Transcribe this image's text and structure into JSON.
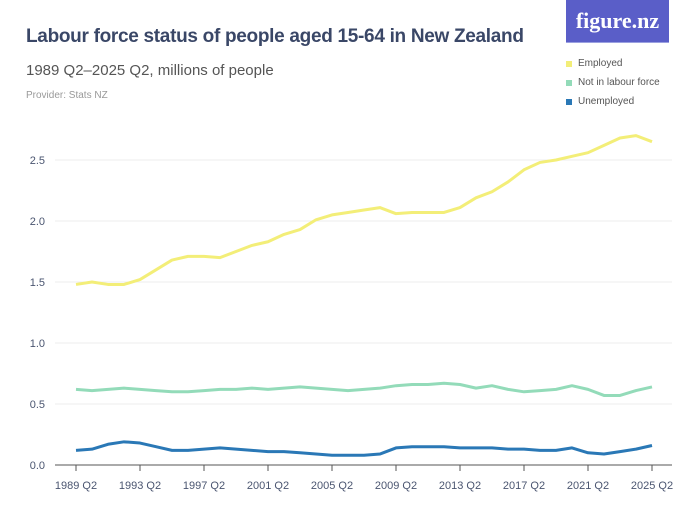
{
  "header": {
    "title": "Labour force status of people aged 15-64 in New Zealand",
    "subtitle": "1989 Q2–2025 Q2, millions of people",
    "provider": "Provider: Stats NZ",
    "logo": "figure.nz"
  },
  "chart_data": {
    "type": "line",
    "title": "Labour force status of people aged 15-64 in New Zealand",
    "subtitle": "1989 Q2–2025 Q2, millions of people",
    "x": [
      "1989 Q2",
      "1990 Q2",
      "1991 Q2",
      "1992 Q2",
      "1993 Q2",
      "1994 Q2",
      "1995 Q2",
      "1996 Q2",
      "1997 Q2",
      "1998 Q2",
      "1999 Q2",
      "2000 Q2",
      "2001 Q2",
      "2002 Q2",
      "2003 Q2",
      "2004 Q2",
      "2005 Q2",
      "2006 Q2",
      "2007 Q2",
      "2008 Q2",
      "2009 Q2",
      "2010 Q2",
      "2011 Q2",
      "2012 Q2",
      "2013 Q2",
      "2014 Q2",
      "2015 Q2",
      "2016 Q2",
      "2017 Q2",
      "2018 Q2",
      "2019 Q2",
      "2020 Q2",
      "2021 Q2",
      "2022 Q2",
      "2023 Q2",
      "2024 Q2",
      "2025 Q2"
    ],
    "xticks": [
      "1989 Q2",
      "1993 Q2",
      "1997 Q2",
      "2001 Q2",
      "2005 Q2",
      "2009 Q2",
      "2013 Q2",
      "2017 Q2",
      "2021 Q2",
      "2025 Q2"
    ],
    "yticks": [
      "0.0",
      "0.5",
      "1.0",
      "1.5",
      "2.0",
      "2.5"
    ],
    "ylim": [
      0,
      2.75
    ],
    "grid": true,
    "legend_position": "top-right",
    "series": [
      {
        "name": "Employed",
        "color": "#f3ee78",
        "values": [
          1.48,
          1.5,
          1.48,
          1.48,
          1.52,
          1.6,
          1.68,
          1.71,
          1.71,
          1.7,
          1.75,
          1.8,
          1.83,
          1.89,
          1.93,
          2.01,
          2.05,
          2.07,
          2.09,
          2.11,
          2.06,
          2.07,
          2.07,
          2.07,
          2.11,
          2.19,
          2.24,
          2.32,
          2.42,
          2.48,
          2.5,
          2.53,
          2.56,
          2.62,
          2.68,
          2.7,
          2.65
        ]
      },
      {
        "name": "Not in labour force",
        "color": "#93dbb9",
        "values": [
          0.62,
          0.61,
          0.62,
          0.63,
          0.62,
          0.61,
          0.6,
          0.6,
          0.61,
          0.62,
          0.62,
          0.63,
          0.62,
          0.63,
          0.64,
          0.63,
          0.62,
          0.61,
          0.62,
          0.63,
          0.65,
          0.66,
          0.66,
          0.67,
          0.66,
          0.63,
          0.65,
          0.62,
          0.6,
          0.61,
          0.62,
          0.65,
          0.62,
          0.57,
          0.57,
          0.61,
          0.64
        ]
      },
      {
        "name": "Unemployed",
        "color": "#2a78b6",
        "values": [
          0.12,
          0.13,
          0.17,
          0.19,
          0.18,
          0.15,
          0.12,
          0.12,
          0.13,
          0.14,
          0.13,
          0.12,
          0.11,
          0.11,
          0.1,
          0.09,
          0.08,
          0.08,
          0.08,
          0.09,
          0.14,
          0.15,
          0.15,
          0.15,
          0.14,
          0.14,
          0.14,
          0.13,
          0.13,
          0.12,
          0.12,
          0.14,
          0.1,
          0.09,
          0.11,
          0.13,
          0.16
        ]
      }
    ]
  }
}
